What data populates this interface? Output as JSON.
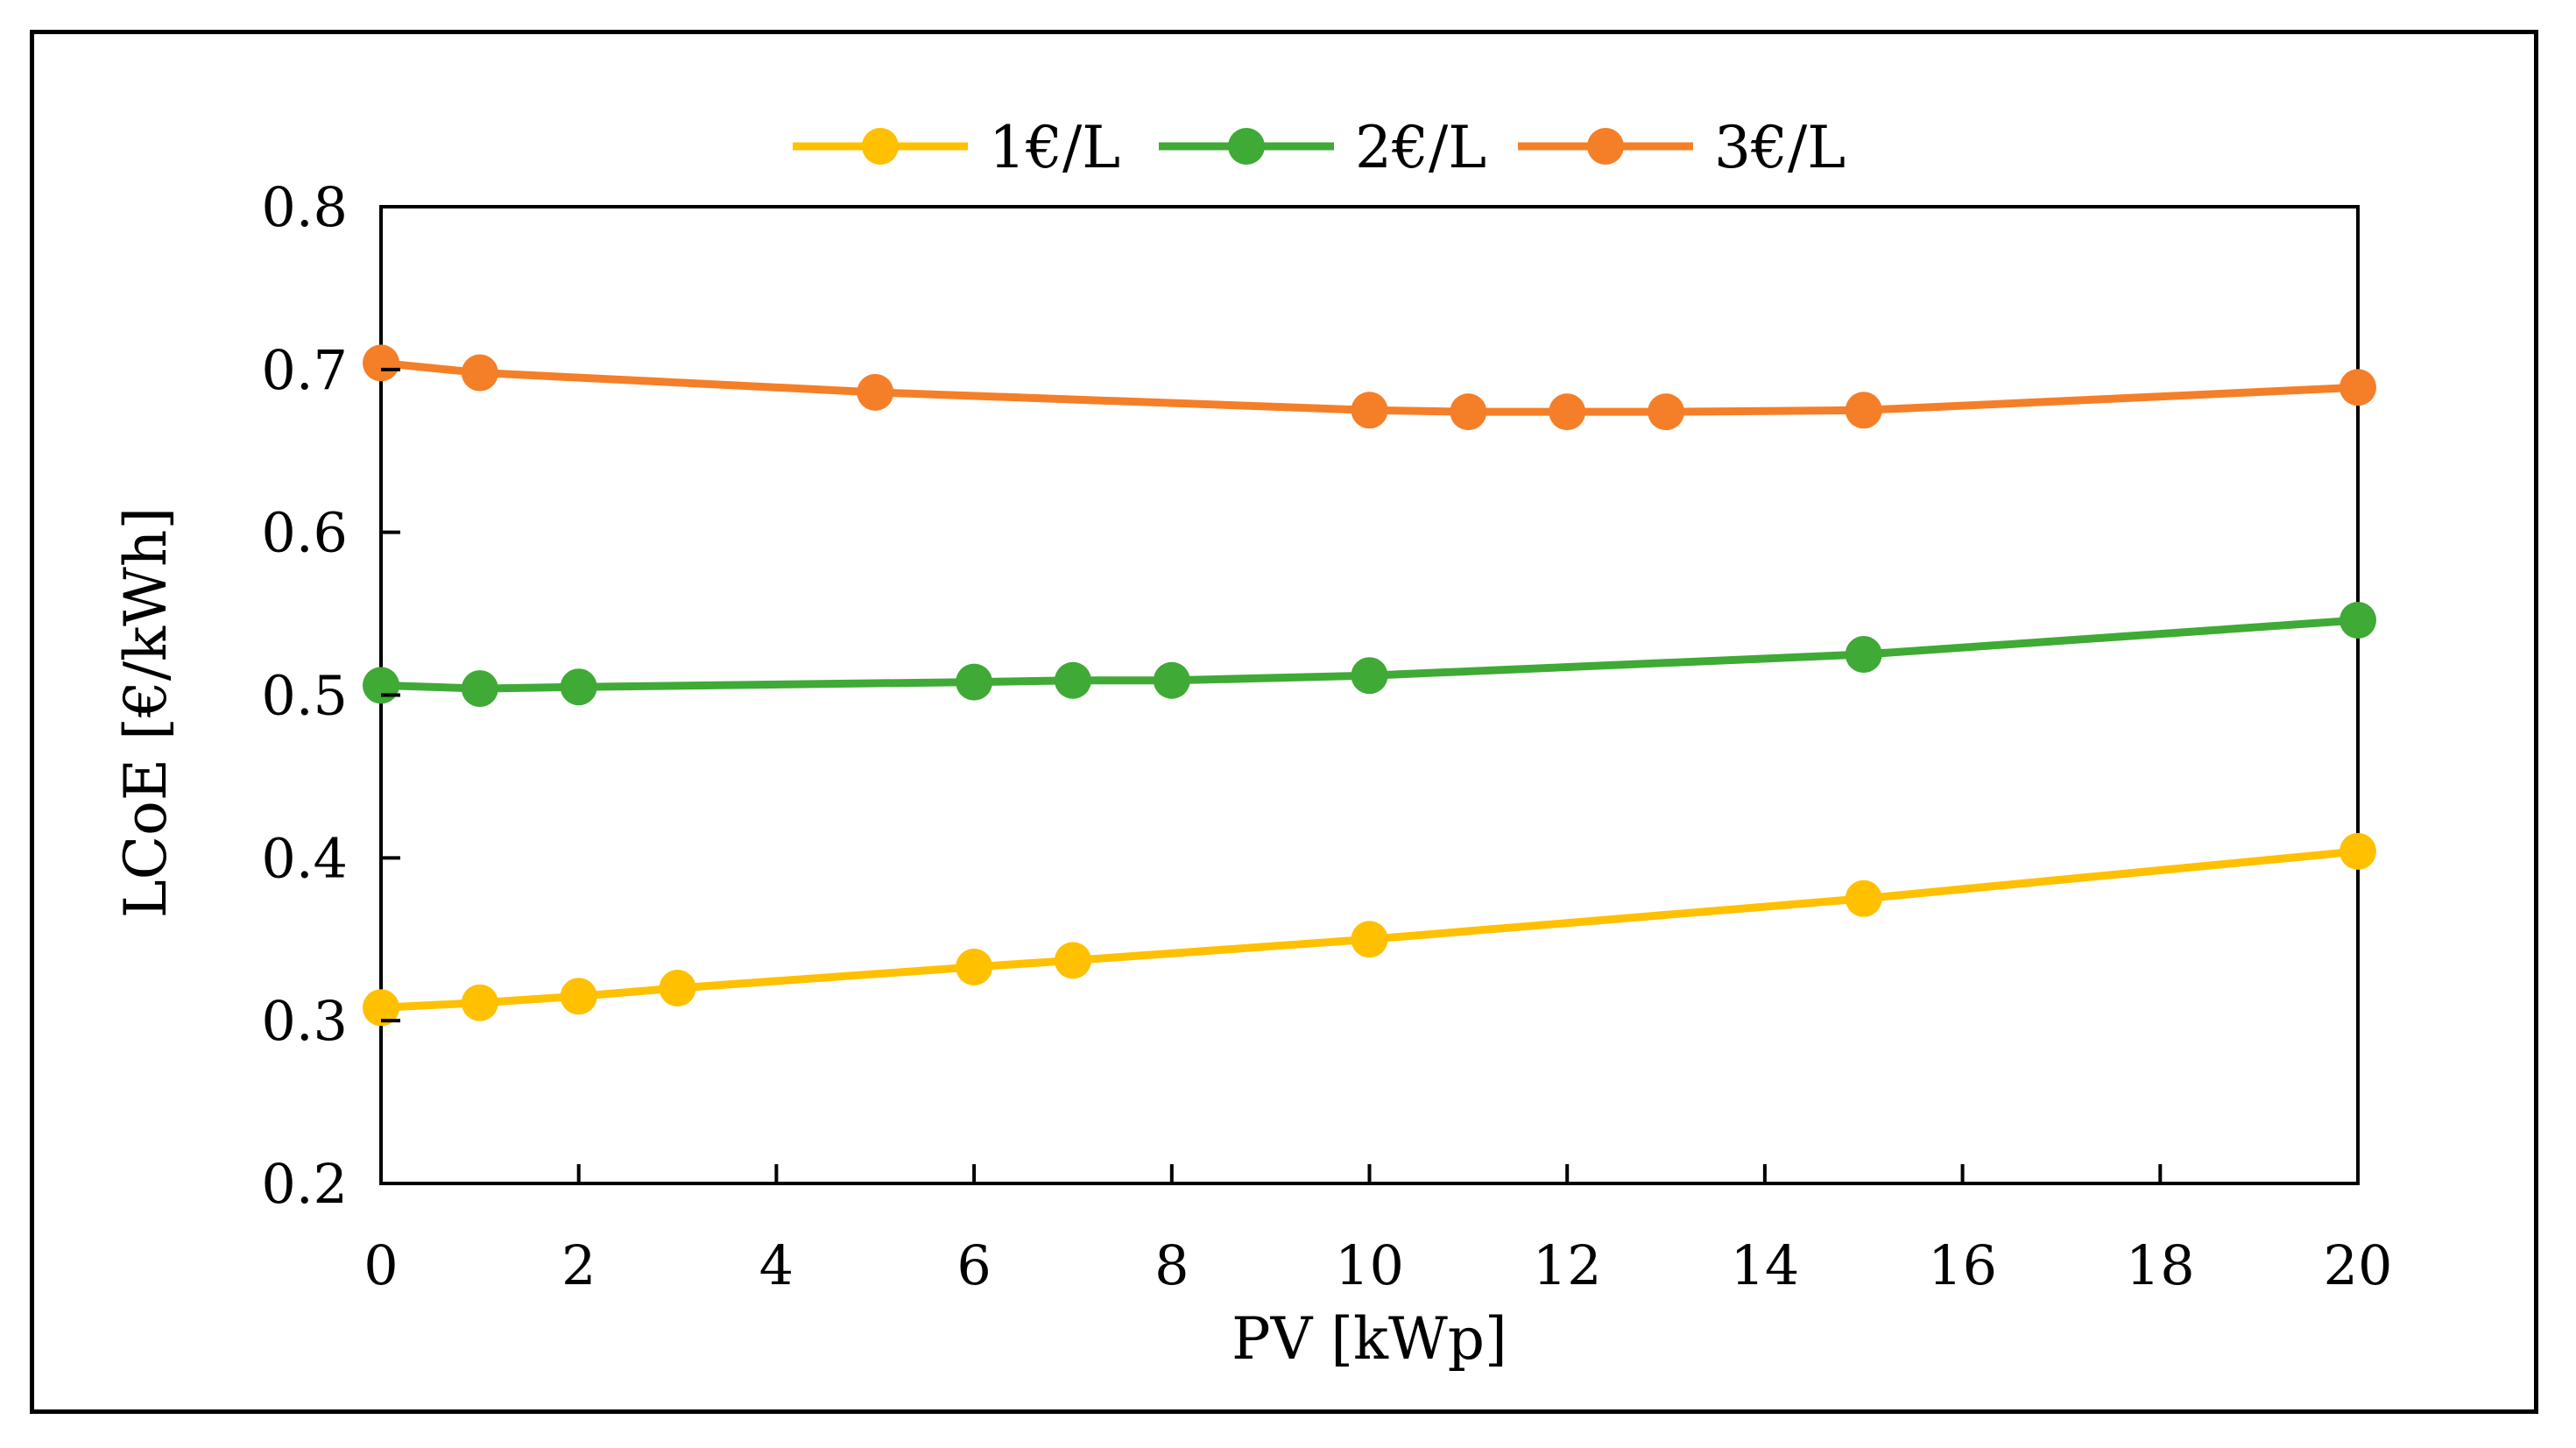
{
  "chart_data": {
    "type": "line",
    "title": "",
    "xlabel": "PV [kWp]",
    "ylabel": "LCoE [€/kWh]",
    "xlim": [
      0,
      20
    ],
    "ylim": [
      0.2,
      0.8
    ],
    "xticks": [
      0,
      2,
      4,
      6,
      8,
      10,
      12,
      14,
      16,
      18,
      20
    ],
    "yticks": [
      0.2,
      0.3,
      0.4,
      0.5,
      0.6,
      0.7,
      0.8
    ],
    "xtick_labels": [
      "0",
      "2",
      "4",
      "6",
      "8",
      "10",
      "12",
      "14",
      "16",
      "18",
      "20"
    ],
    "ytick_labels": [
      "0.2",
      "0.3",
      "0.4",
      "0.5",
      "0.6",
      "0.7",
      "0.8"
    ],
    "grid": false,
    "legend_position": "top-center",
    "series": [
      {
        "name": "1€/L",
        "color": "#FFC000",
        "x": [
          0,
          1,
          2,
          3,
          6,
          7,
          10,
          15,
          20
        ],
        "y": [
          0.308,
          0.311,
          0.315,
          0.32,
          0.333,
          0.337,
          0.35,
          0.375,
          0.404
        ]
      },
      {
        "name": "2€/L",
        "color": "#3FAA35",
        "x": [
          0,
          1,
          2,
          6,
          7,
          8,
          10,
          15,
          20
        ],
        "y": [
          0.506,
          0.504,
          0.505,
          0.508,
          0.509,
          0.509,
          0.512,
          0.525,
          0.546
        ]
      },
      {
        "name": "3€/L",
        "color": "#F47F28",
        "x": [
          0,
          1,
          5,
          10,
          11,
          12,
          13,
          15,
          20
        ],
        "y": [
          0.704,
          0.698,
          0.686,
          0.675,
          0.674,
          0.674,
          0.674,
          0.675,
          0.689
        ]
      }
    ]
  }
}
